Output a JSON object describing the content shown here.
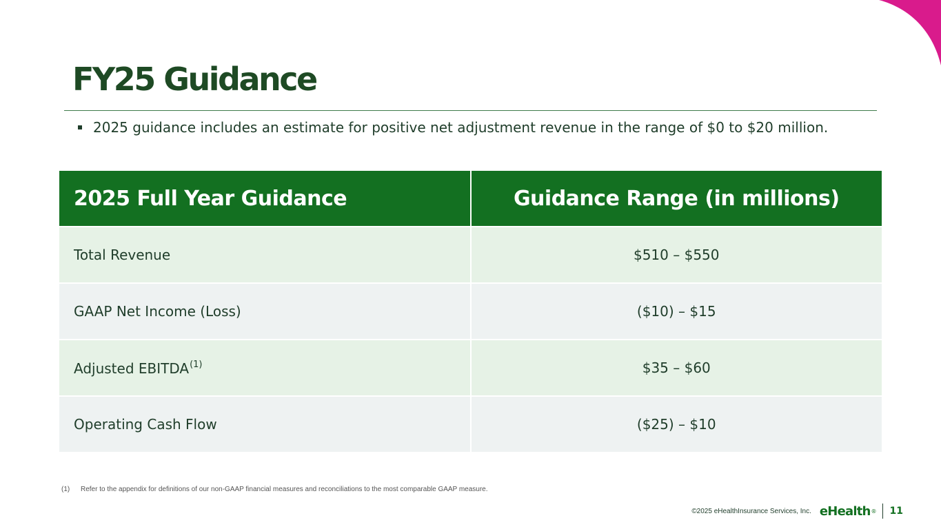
{
  "slide": {
    "title": "FY25 Guidance",
    "bullet": "2025 guidance includes an estimate for positive net adjustment revenue in the range of $0 to $20 million.",
    "accent_color": "#d91b8c",
    "brand_green": "#137021"
  },
  "table": {
    "headers": [
      "2025 Full Year Guidance",
      "Guidance Range (in millions)"
    ],
    "rows": [
      {
        "label": "Total Revenue",
        "footnote": "",
        "range": "$510 – $550"
      },
      {
        "label": "GAAP Net Income (Loss)",
        "footnote": "",
        "range": "($10) – $15"
      },
      {
        "label": "Adjusted EBITDA",
        "footnote": "(1)",
        "range": "$35 – $60"
      },
      {
        "label": "Operating Cash Flow",
        "footnote": "",
        "range": "($25) – $10"
      }
    ]
  },
  "footnote": {
    "marker": "(1)",
    "text": "Refer to the appendix for definitions of our non-GAAP financial measures and reconciliations to the most comparable GAAP measure."
  },
  "footer": {
    "copyright": "©2025 eHealthInsurance Services, Inc.",
    "logo": "eHealth",
    "logo_mark": "®",
    "page_number": "11"
  }
}
